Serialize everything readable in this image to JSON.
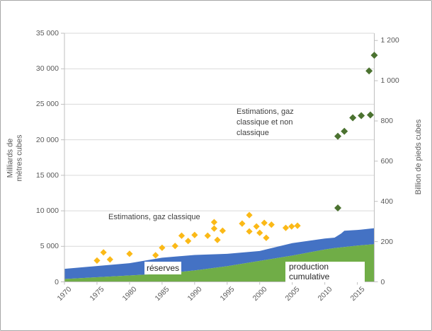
{
  "chart": {
    "left_axis_title_line1": "Milliards de",
    "left_axis_title_line2": "mètres cubes",
    "right_axis_title": "Billion de pieds cubes",
    "annotation_classique": "Estimations, gaz classique",
    "annotation_non_classique_line1": "Estimations, gaz",
    "annotation_non_classique_line2": "classique et non",
    "annotation_non_classique_line3": "classique",
    "label_reserves": "réserves",
    "label_production_line1": "production",
    "label_production_line2": "cumulative"
  },
  "colors": {
    "production_area": "#70ad47",
    "reserves_area": "#4472c4",
    "estimation_classique_marker": "#fbb917",
    "estimation_non_classique_marker": "#4b7230",
    "gridline": "#d9d9d9",
    "axis_line": "#bfbfbf",
    "tick_text": "#595959",
    "frame_border": "#a6a6a6"
  },
  "chart_data": {
    "type": "combo-area-scatter",
    "title": "",
    "xlim": [
      1970,
      2017.6
    ],
    "left_ylim": [
      0,
      35000
    ],
    "left_ylabel": "Milliards de mètres cubes",
    "right_ylabel": "Billion de pieds cubes",
    "bcf_to_milliards_m3_factor": 28.317,
    "grid": "horizontal",
    "legend_position": "none",
    "x_tick_labels": [
      "1970",
      "1975",
      "1980",
      "1985",
      "1990",
      "1995",
      "2000",
      "2005",
      "2010",
      "2015"
    ],
    "x_tick_values": [
      1970,
      1975,
      1980,
      1985,
      1990,
      1995,
      2000,
      2005,
      2010,
      2015
    ],
    "left_y_tick_labels": [
      "0",
      "5 000",
      "10 000",
      "15 000",
      "20 000",
      "25 000",
      "30 000",
      "35 000"
    ],
    "left_y_tick_values": [
      0,
      5000,
      10000,
      15000,
      20000,
      25000,
      30000,
      35000
    ],
    "right_y_tick_labels": [
      "0",
      "200",
      "400",
      "600",
      "800",
      "1 000",
      "1 200"
    ],
    "right_y_tick_values": [
      0,
      200,
      400,
      600,
      800,
      1000,
      1200
    ],
    "area_series": {
      "stacked": true,
      "x": [
        1970,
        1975,
        1980,
        1985,
        1990,
        1995,
        2000,
        2005,
        2010,
        2011.5,
        2012.5,
        2013,
        2015,
        2017.6
      ],
      "production_cumulative": [
        400,
        650,
        900,
        1150,
        1600,
        2200,
        2950,
        3700,
        4550,
        4750,
        4850,
        4900,
        5100,
        5300
      ],
      "reserves": [
        1430,
        1580,
        1730,
        2250,
        2190,
        1750,
        1400,
        1750,
        1550,
        1470,
        1950,
        2300,
        2200,
        2250
      ]
    },
    "scatter_series": [
      {
        "name": "Estimations, gaz classique",
        "points": [
          [
            1975,
            3000
          ],
          [
            1976,
            4150
          ],
          [
            1977,
            3150
          ],
          [
            1980,
            3950
          ],
          [
            1984,
            3750
          ],
          [
            1985,
            4800
          ],
          [
            1987,
            5050
          ],
          [
            1988,
            6500
          ],
          [
            1989,
            5750
          ],
          [
            1990,
            6600
          ],
          [
            1992,
            6500
          ],
          [
            1993,
            8400
          ],
          [
            1993,
            7500
          ],
          [
            1993.5,
            5900
          ],
          [
            1994.3,
            7200
          ],
          [
            1997.3,
            8200
          ],
          [
            1998.4,
            9400
          ],
          [
            1998.4,
            7100
          ],
          [
            1999.5,
            7800
          ],
          [
            2000,
            6900
          ],
          [
            2000.7,
            8300
          ],
          [
            2001,
            6200
          ],
          [
            2001.8,
            8050
          ],
          [
            2004,
            7600
          ],
          [
            2004.9,
            7800
          ],
          [
            2005.8,
            7900
          ]
        ]
      },
      {
        "name": "Estimations, gaz classique et non classique",
        "points": [
          [
            2012,
            10400
          ],
          [
            2012,
            20500
          ],
          [
            2013,
            21200
          ],
          [
            2014.3,
            23100
          ],
          [
            2015.6,
            23400
          ],
          [
            2017,
            23500
          ],
          [
            2016.8,
            29700
          ],
          [
            2017.6,
            31900
          ]
        ]
      }
    ]
  }
}
